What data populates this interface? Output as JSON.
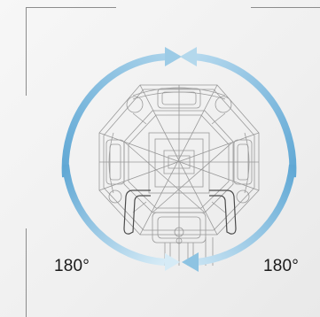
{
  "rotation": {
    "left_label": "180°",
    "right_label": "180°"
  },
  "colors": {
    "arrow_main": "#6fb3db",
    "arrow_light": "#cfe6f4",
    "frame_line": "#8c8c8c",
    "drawing_line": "#8a8a8a",
    "text": "#1a1a1a"
  }
}
